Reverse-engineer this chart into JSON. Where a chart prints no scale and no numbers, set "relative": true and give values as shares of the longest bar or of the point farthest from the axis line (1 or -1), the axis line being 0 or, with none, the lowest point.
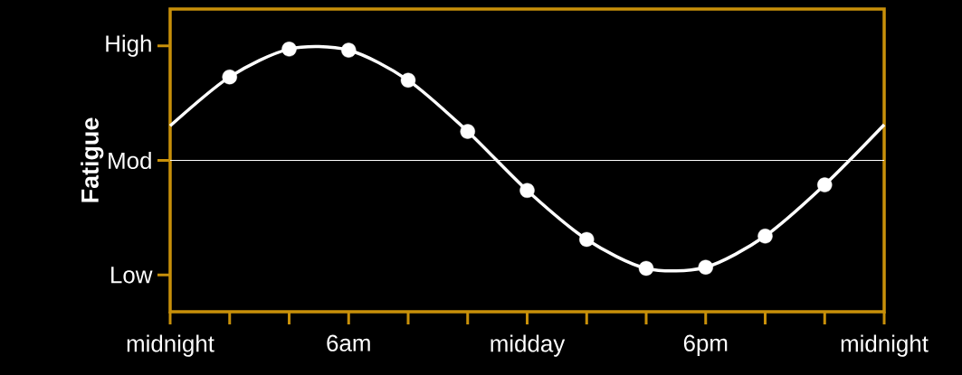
{
  "chart_data": {
    "type": "line",
    "ylabel": "Fatigue",
    "relative": true,
    "categories": [
      "midnight",
      null,
      null,
      "6am",
      null,
      null,
      "midday",
      null,
      null,
      "6pm",
      null,
      null,
      "midnight"
    ],
    "line_style": "solid",
    "ref_lines": [
      {
        "axis": "y",
        "value": 0,
        "label": "Mod",
        "color": "#ffffff"
      }
    ],
    "annotations": [
      "High",
      "Low"
    ],
    "series": [
      {
        "color": "#ffffff",
        "marker": "none",
        "values": [
          0.31,
          0.75,
          1.0,
          0.99,
          0.72,
          0.26,
          -0.27,
          -0.71,
          -0.97,
          -0.96,
          -0.68,
          -0.22,
          0.32
        ]
      },
      {
        "type": "scatter",
        "color": "#ffffff",
        "marker": "circle",
        "values": [
          null,
          0.75,
          1.0,
          0.99,
          0.72,
          0.26,
          -0.27,
          -0.71,
          -0.97,
          -0.96,
          -0.68,
          -0.22,
          null
        ]
      }
    ]
  }
}
